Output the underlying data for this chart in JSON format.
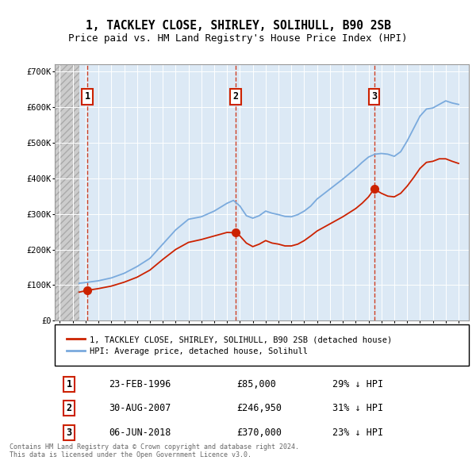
{
  "title": "1, TACKLEY CLOSE, SHIRLEY, SOLIHULL, B90 2SB",
  "subtitle": "Price paid vs. HM Land Registry's House Price Index (HPI)",
  "title_fontsize": 10.5,
  "subtitle_fontsize": 9,
  "plot_bg_color": "#dce9f5",
  "ylim": [
    0,
    720000
  ],
  "yticks": [
    0,
    100000,
    200000,
    300000,
    400000,
    500000,
    600000,
    700000
  ],
  "ytick_labels": [
    "£0",
    "£100K",
    "£200K",
    "£300K",
    "£400K",
    "£500K",
    "£600K",
    "£700K"
  ],
  "xlim_start": 1993.6,
  "xlim_end": 2025.8,
  "hpi_cutoff_year": 1995.5,
  "sale_dates": [
    1996.14,
    2007.66,
    2018.43
  ],
  "sale_prices": [
    85000,
    246950,
    370000
  ],
  "sale_labels": [
    "1",
    "2",
    "3"
  ],
  "sale_label_dates": [
    "23-FEB-1996",
    "30-AUG-2007",
    "06-JUN-2018"
  ],
  "sale_label_prices": [
    "£85,000",
    "£246,950",
    "£370,000"
  ],
  "sale_label_hpi": [
    "29% ↓ HPI",
    "31% ↓ HPI",
    "23% ↓ HPI"
  ],
  "hpi_color": "#7aaadd",
  "price_color": "#cc2200",
  "legend_entries": [
    "1, TACKLEY CLOSE, SHIRLEY, SOLIHULL, B90 2SB (detached house)",
    "HPI: Average price, detached house, Solihull"
  ],
  "footer_text": "Contains HM Land Registry data © Crown copyright and database right 2024.\nThis data is licensed under the Open Government Licence v3.0.",
  "hpi_anchors": [
    [
      1995.5,
      105000
    ],
    [
      1996.0,
      107000
    ],
    [
      1997.0,
      112000
    ],
    [
      1998.0,
      120000
    ],
    [
      1999.0,
      133000
    ],
    [
      2000.0,
      152000
    ],
    [
      2001.0,
      175000
    ],
    [
      2002.0,
      215000
    ],
    [
      2003.0,
      255000
    ],
    [
      2004.0,
      285000
    ],
    [
      2005.0,
      292000
    ],
    [
      2006.0,
      308000
    ],
    [
      2007.0,
      330000
    ],
    [
      2007.5,
      338000
    ],
    [
      2008.0,
      322000
    ],
    [
      2008.5,
      295000
    ],
    [
      2009.0,
      288000
    ],
    [
      2009.5,
      295000
    ],
    [
      2010.0,
      308000
    ],
    [
      2010.5,
      302000
    ],
    [
      2011.0,
      298000
    ],
    [
      2011.5,
      293000
    ],
    [
      2012.0,
      292000
    ],
    [
      2012.5,
      298000
    ],
    [
      2013.0,
      308000
    ],
    [
      2013.5,
      322000
    ],
    [
      2014.0,
      342000
    ],
    [
      2015.0,
      370000
    ],
    [
      2016.0,
      398000
    ],
    [
      2017.0,
      428000
    ],
    [
      2017.5,
      445000
    ],
    [
      2018.0,
      460000
    ],
    [
      2018.5,
      468000
    ],
    [
      2019.0,
      470000
    ],
    [
      2019.5,
      468000
    ],
    [
      2020.0,
      462000
    ],
    [
      2020.5,
      475000
    ],
    [
      2021.0,
      505000
    ],
    [
      2021.5,
      540000
    ],
    [
      2022.0,
      575000
    ],
    [
      2022.5,
      595000
    ],
    [
      2023.0,
      598000
    ],
    [
      2023.5,
      608000
    ],
    [
      2024.0,
      618000
    ],
    [
      2024.5,
      612000
    ],
    [
      2025.0,
      608000
    ]
  ],
  "price_anchors": [
    [
      1995.5,
      80000
    ],
    [
      1996.14,
      85000
    ],
    [
      1997.0,
      90000
    ],
    [
      1998.0,
      97000
    ],
    [
      1999.0,
      108000
    ],
    [
      2000.0,
      122000
    ],
    [
      2001.0,
      142000
    ],
    [
      2002.0,
      172000
    ],
    [
      2003.0,
      200000
    ],
    [
      2004.0,
      220000
    ],
    [
      2005.0,
      228000
    ],
    [
      2006.0,
      238000
    ],
    [
      2007.0,
      248000
    ],
    [
      2007.66,
      246950
    ],
    [
      2008.0,
      238000
    ],
    [
      2008.5,
      218000
    ],
    [
      2009.0,
      208000
    ],
    [
      2009.5,
      215000
    ],
    [
      2010.0,
      225000
    ],
    [
      2010.5,
      218000
    ],
    [
      2011.0,
      215000
    ],
    [
      2011.5,
      210000
    ],
    [
      2012.0,
      210000
    ],
    [
      2012.5,
      215000
    ],
    [
      2013.0,
      225000
    ],
    [
      2013.5,
      238000
    ],
    [
      2014.0,
      252000
    ],
    [
      2015.0,
      272000
    ],
    [
      2016.0,
      292000
    ],
    [
      2017.0,
      315000
    ],
    [
      2017.5,
      330000
    ],
    [
      2018.0,
      348000
    ],
    [
      2018.43,
      370000
    ],
    [
      2019.0,
      358000
    ],
    [
      2019.5,
      350000
    ],
    [
      2020.0,
      348000
    ],
    [
      2020.5,
      358000
    ],
    [
      2021.0,
      378000
    ],
    [
      2021.5,
      402000
    ],
    [
      2022.0,
      428000
    ],
    [
      2022.5,
      445000
    ],
    [
      2023.0,
      448000
    ],
    [
      2023.5,
      455000
    ],
    [
      2024.0,
      455000
    ],
    [
      2024.5,
      448000
    ],
    [
      2025.0,
      442000
    ]
  ]
}
